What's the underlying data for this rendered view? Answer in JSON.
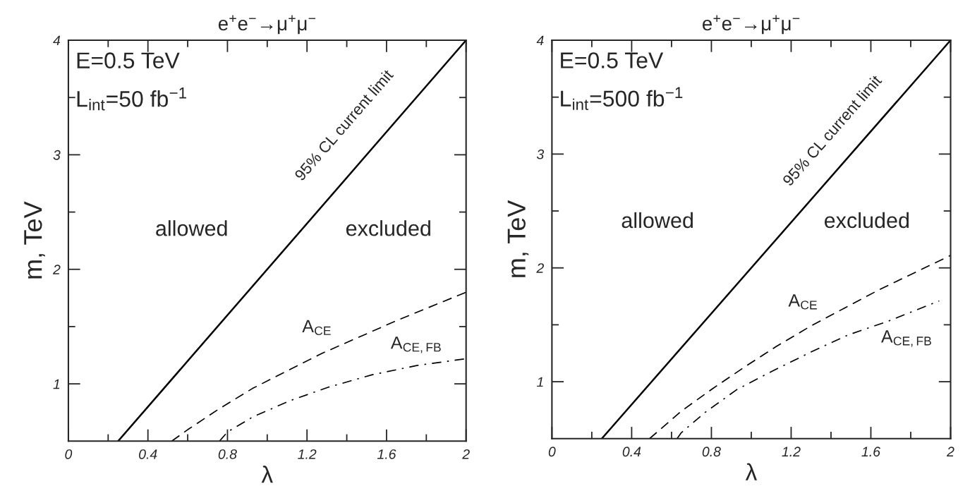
{
  "chart_data": [
    {
      "type": "line",
      "title": "e$^{+}$e$^{−}$→μ$^{+}$μ$^{−}$",
      "xlabel": "λ",
      "ylabel": "m, TeV",
      "xlim": [
        0,
        2
      ],
      "ylim": [
        0.5,
        4
      ],
      "xticks": [
        0,
        {
          "value": 0.2,
          "label": null
        },
        0.4,
        {
          "value": 0.6,
          "label": null
        },
        0.8,
        {
          "value": 1.0,
          "label": null
        },
        1.2,
        {
          "value": 1.4,
          "label": null
        },
        1.6,
        {
          "value": 1.8,
          "label": null
        },
        2
      ],
      "yticks": [
        {
          "value": 1,
          "label": "1"
        },
        {
          "value": 1.5,
          "label": null
        },
        {
          "value": 2,
          "label": "2"
        },
        {
          "value": 2.5,
          "label": null
        },
        {
          "value": 3,
          "label": "3"
        },
        {
          "value": 3.5,
          "label": null
        },
        {
          "value": 4,
          "label": "4"
        }
      ],
      "grid": false,
      "legend": false,
      "series": [
        {
          "color": "#000000",
          "line_style": "solid",
          "x": [
            0.25,
            2
          ],
          "values": [
            0.5,
            4
          ]
        },
        {
          "color": "#000000",
          "line_style": "dashed",
          "x": [
            0.52,
            0.6,
            0.756,
            0.926,
            1.097,
            1.28,
            1.464,
            1.647,
            2
          ],
          "values": [
            0.5,
            0.6,
            0.78,
            0.96,
            1.11,
            1.27,
            1.41,
            1.55,
            1.8
          ]
        },
        {
          "color": "#000000",
          "line_style": "dashdot",
          "x": [
            0.76,
            0.8,
            0.926,
            1.11,
            1.306,
            1.529,
            1.752,
            2
          ],
          "values": [
            0.5,
            0.58,
            0.71,
            0.85,
            0.97,
            1.08,
            1.16,
            1.22
          ]
        }
      ],
      "annotations": [
        "E=0.5 TeV",
        "L$_{int}$=50 fb$^{−1}$",
        "95% CL current limit",
        "allowed",
        "excluded",
        "A$_{CE}$",
        "A$_{CE,FB}$"
      ]
    },
    {
      "type": "line",
      "title": "e$^{+}$e$^{−}$→μ$^{+}$μ$^{−}$",
      "xlabel": "λ",
      "ylabel": "m, TeV",
      "xlim": [
        0,
        2
      ],
      "ylim": [
        0.5,
        4
      ],
      "xticks": [
        0,
        {
          "value": 0.2,
          "label": null
        },
        0.4,
        {
          "value": 0.6,
          "label": null
        },
        0.8,
        {
          "value": 1.0,
          "label": null
        },
        1.2,
        {
          "value": 1.4,
          "label": null
        },
        1.6,
        {
          "value": 1.8,
          "label": null
        },
        2
      ],
      "yticks": [
        {
          "value": 1,
          "label": "1"
        },
        {
          "value": 1.5,
          "label": null
        },
        {
          "value": 2,
          "label": "2"
        },
        {
          "value": 2.5,
          "label": null
        },
        {
          "value": 3,
          "label": "3"
        },
        {
          "value": 3.5,
          "label": null
        },
        {
          "value": 4,
          "label": "4"
        }
      ],
      "grid": false,
      "legend": false,
      "series": [
        {
          "color": "#000000",
          "line_style": "solid",
          "x": [
            0.25,
            2
          ],
          "values": [
            0.5,
            4
          ]
        },
        {
          "color": "#000000",
          "line_style": "dashed",
          "x": [
            0.49,
            0.648,
            0.807,
            0.967,
            1.126,
            1.299,
            1.471,
            1.644,
            2
          ],
          "values": [
            0.5,
            0.74,
            0.94,
            1.13,
            1.31,
            1.49,
            1.65,
            1.81,
            2.11
          ]
        },
        {
          "color": "#000000",
          "line_style": "dashdot",
          "x": [
            0.628,
            0.648,
            0.768,
            0.927,
            1.113,
            1.299,
            1.485,
            1.684,
            1.943
          ],
          "values": [
            0.5,
            0.55,
            0.73,
            0.93,
            1.1,
            1.26,
            1.41,
            1.53,
            1.71
          ]
        }
      ],
      "annotations": [
        "E=0.5 TeV",
        "L$_{int}$=500 fb$^{−1}$",
        "95% CL current limit",
        "allowed",
        "excluded",
        "A$_{CE}$",
        "A$_{CE,FB}$"
      ]
    }
  ]
}
